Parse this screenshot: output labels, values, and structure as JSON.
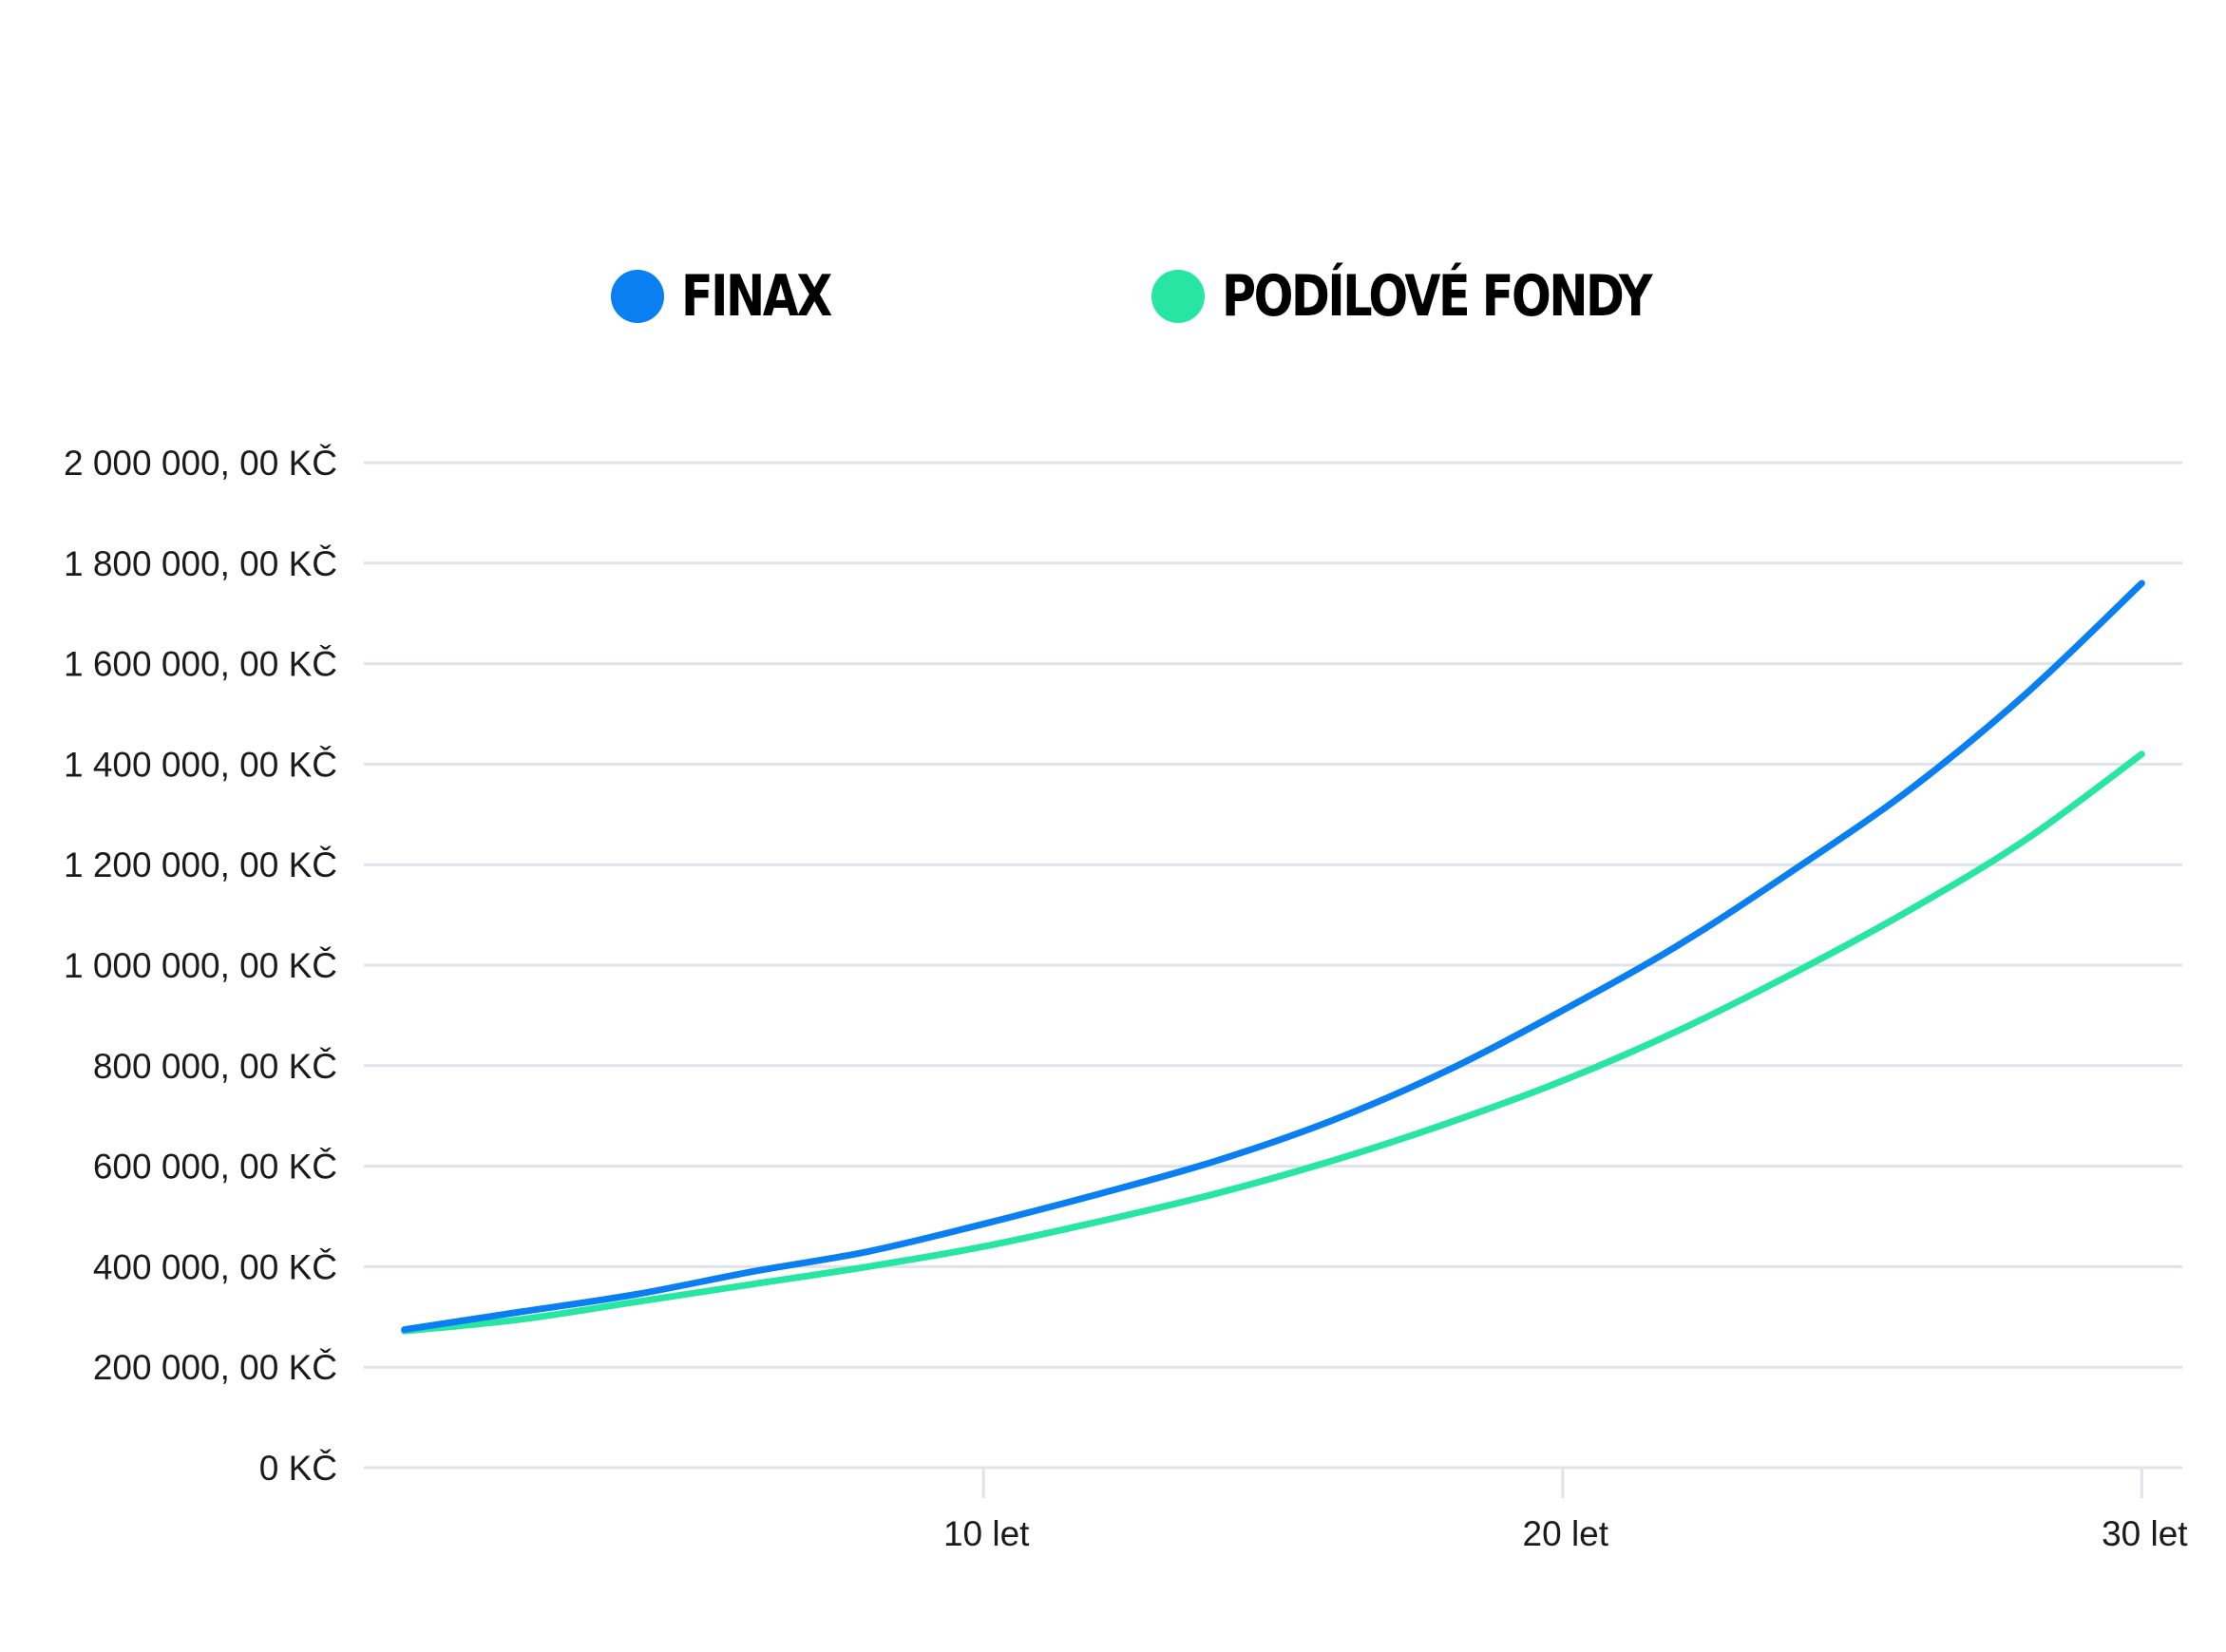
{
  "chart_data": {
    "type": "line",
    "title": "",
    "xlabel": "",
    "ylabel": "",
    "x": [
      0,
      2,
      4,
      6,
      8,
      10,
      12,
      14,
      16,
      18,
      20,
      22,
      24,
      26,
      28,
      30
    ],
    "x_ticks": [
      {
        "value": 10,
        "label": "10 let"
      },
      {
        "value": 20,
        "label": "20 let"
      },
      {
        "value": 30,
        "label": "30 let"
      }
    ],
    "y_ticks": [
      {
        "value": 0,
        "label": "0 KČ"
      },
      {
        "value": 200000,
        "label": "200 000, 00 KČ"
      },
      {
        "value": 400000,
        "label": "400 000, 00 KČ"
      },
      {
        "value": 600000,
        "label": "600 000, 00 KČ"
      },
      {
        "value": 800000,
        "label": "800 000, 00 KČ"
      },
      {
        "value": 1000000,
        "label": "1 000 000, 00 KČ"
      },
      {
        "value": 1200000,
        "label": "1 200 000, 00 KČ"
      },
      {
        "value": 1400000,
        "label": "1 400 000, 00 KČ"
      },
      {
        "value": 1600000,
        "label": "1 600 000, 00 KČ"
      },
      {
        "value": 1800000,
        "label": "1 800 000, 00 KČ"
      },
      {
        "value": 2000000,
        "label": "2 000 000, 00 KČ"
      }
    ],
    "xlim": [
      -0.7,
      30.7
    ],
    "ylim": [
      0,
      2000000
    ],
    "grid": true,
    "legend_position": "top",
    "series": [
      {
        "name": "FINAX",
        "color": "#0a7ff2",
        "values": [
          275000,
          310000,
          345000,
          390000,
          430000,
          485000,
          545000,
          610000,
          690000,
          790000,
          910000,
          1040000,
          1190000,
          1350000,
          1540000,
          1760000
        ]
      },
      {
        "name": "PODÍLOVÉ FONDY",
        "color": "#26e6a2",
        "values": [
          272000,
          295000,
          330000,
          365000,
          400000,
          440000,
          490000,
          545000,
          610000,
          685000,
          770000,
          870000,
          985000,
          1110000,
          1250000,
          1420000
        ]
      }
    ]
  }
}
